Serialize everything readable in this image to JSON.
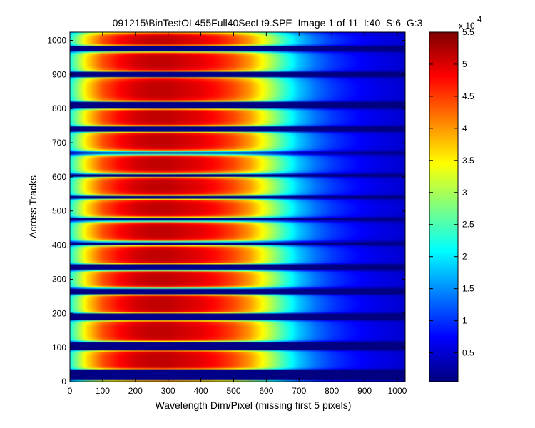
{
  "chart_data": {
    "type": "heatmap",
    "title": "091215\\BinTestOL455Full40SecLt9.SPE  Image 1 of 11  I:40  S:6  G:3",
    "xlabel": "Wavelength Dim/Pixel (missing first 5 pixels)",
    "ylabel": "Across Tracks",
    "xlim": [
      0,
      1024
    ],
    "ylim": [
      0,
      1024
    ],
    "x_ticks": [
      "0",
      "100",
      "200",
      "300",
      "400",
      "500",
      "600",
      "700",
      "800",
      "900",
      "1000"
    ],
    "y_ticks": [
      "0",
      "100",
      "200",
      "300",
      "400",
      "500",
      "600",
      "700",
      "800",
      "900",
      "1000"
    ],
    "colorbar": {
      "range": [
        500,
        55000
      ],
      "ticks": [
        "0.5",
        "1",
        "1.5",
        "2",
        "2.5",
        "3",
        "3.5",
        "4",
        "4.5",
        "5",
        "5.5"
      ],
      "tick_values": [
        5000,
        10000,
        15000,
        20000,
        25000,
        30000,
        35000,
        40000,
        45000,
        50000,
        55000
      ],
      "multiplier": "x 10",
      "exponent": "4",
      "colormap": "jet"
    },
    "profile_x": [
      0,
      50,
      100,
      150,
      200,
      250,
      300,
      350,
      400,
      450,
      500,
      550,
      600,
      650,
      700,
      750,
      800,
      850,
      900,
      950,
      1024
    ],
    "profile_value": [
      22000,
      36000,
      44000,
      48000,
      50500,
      51500,
      51500,
      50500,
      49500,
      47500,
      44500,
      40000,
      33000,
      25000,
      18000,
      13500,
      10500,
      8500,
      7000,
      6000,
      5000
    ],
    "track_gaps": [
      {
        "y": 20,
        "half_width": 15
      },
      {
        "y": 105,
        "half_width": 12
      },
      {
        "y": 190,
        "half_width": 10
      },
      {
        "y": 265,
        "half_width": 9
      },
      {
        "y": 335,
        "half_width": 9
      },
      {
        "y": 405,
        "half_width": 5
      },
      {
        "y": 475,
        "half_width": 5
      },
      {
        "y": 540,
        "half_width": 4
      },
      {
        "y": 605,
        "half_width": 4
      },
      {
        "y": 670,
        "half_width": 4
      },
      {
        "y": 740,
        "half_width": 8
      },
      {
        "y": 810,
        "half_width": 10
      },
      {
        "y": 900,
        "half_width": 7
      },
      {
        "y": 975,
        "half_width": 8
      }
    ]
  }
}
